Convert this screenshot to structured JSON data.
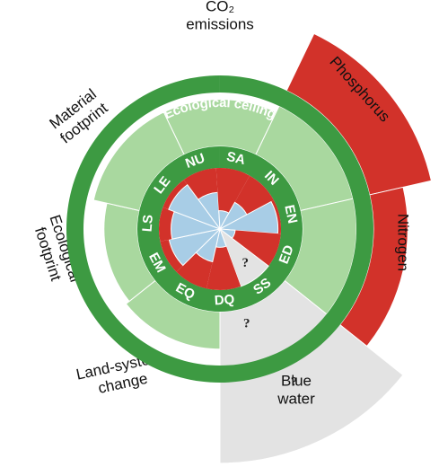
{
  "chart_data": {
    "type": "doughnut",
    "ceiling_label": "Ecological ceiling",
    "boundaries": [
      {
        "name": [
          "CO₂",
          "emissions"
        ],
        "value": 0.95,
        "color": "#a9d89f"
      },
      {
        "name": [
          "Phosphorus"
        ],
        "value": 1.5,
        "color": "#d2322a"
      },
      {
        "name": [
          "Nitrogen"
        ],
        "value": 1.3,
        "color": "#d2322a"
      },
      {
        "name": [
          "Blue",
          "water"
        ],
        "value": 1.62,
        "color": "#e3e3e3",
        "note": "?"
      },
      {
        "name": [
          "Land-system",
          "change"
        ],
        "value": 0.88,
        "color": "#a9d89f"
      },
      {
        "name": [
          "Ecological",
          "footprint"
        ],
        "value": 0.85,
        "color": "#a9d89f"
      },
      {
        "name": [
          "Material",
          "footprint"
        ],
        "value": 0.95,
        "color": "#a9d89f"
      }
    ],
    "social": [
      {
        "name": "NU",
        "value": 0.6
      },
      {
        "name": "SA",
        "value": 0.3
      },
      {
        "name": "IN",
        "value": 0.5
      },
      {
        "name": "EN",
        "value": 0.95
      },
      {
        "name": "ED",
        "value": 0.25
      },
      {
        "name": "SS",
        "value": 1,
        "color": "#e3e3e3",
        "note": "?"
      },
      {
        "name": "DQ",
        "value": 0.3
      },
      {
        "name": "EQ",
        "value": 0.55
      },
      {
        "name": "EM",
        "value": 0.85
      },
      {
        "name": "LS",
        "value": 0.8
      },
      {
        "name": "LE",
        "value": 0.9
      }
    ],
    "achieved_color": "#a8cde6",
    "shortfall_color": "#d2322a",
    "ring_color": "#3d9a42"
  }
}
